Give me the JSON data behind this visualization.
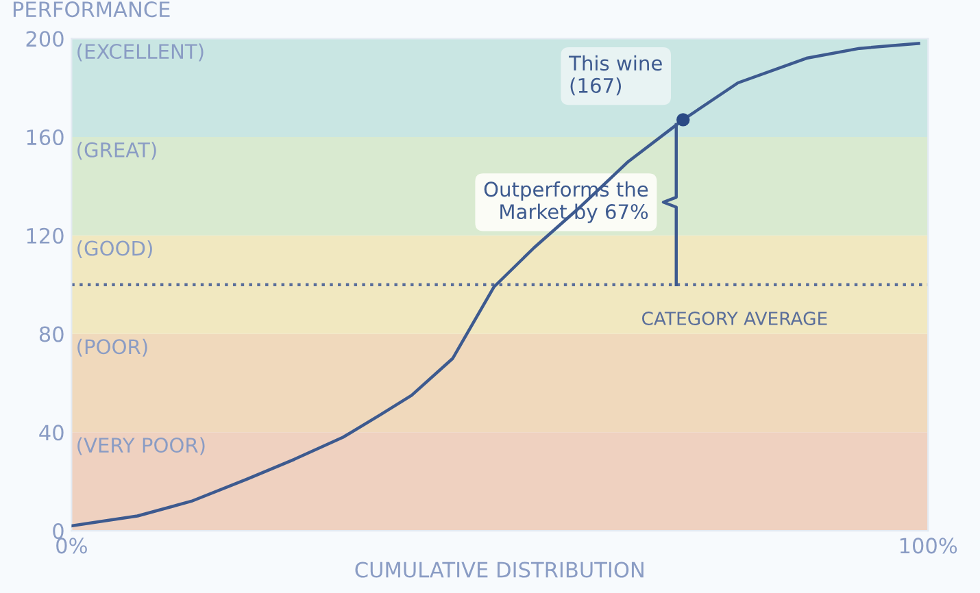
{
  "chart_data": {
    "type": "line",
    "xlabel": "CUMULATIVE DISTRIBUTION",
    "ylabel": "PERFORMANCE",
    "xlim": [
      0,
      100
    ],
    "ylim": [
      0,
      200
    ],
    "xticks": [
      {
        "value": 0,
        "label": "0%"
      },
      {
        "value": 100,
        "label": "100%"
      }
    ],
    "yticks": [
      0,
      40,
      80,
      120,
      160,
      200
    ],
    "grid": false,
    "marker": "none",
    "line_style": "solid",
    "series": [
      {
        "color": "#3d5a8f",
        "x": [
          0,
          7.7,
          14,
          20.5,
          26,
          31.7,
          36,
          39.7,
          44.5,
          49.3,
          54,
          59.2,
          65,
          71.4,
          77.8,
          85.8,
          92,
          98.9
        ],
        "values": [
          2,
          6,
          12,
          21,
          29,
          38,
          47,
          55,
          70,
          99,
          115,
          131,
          150,
          167,
          182,
          192,
          196,
          198
        ]
      },
      {
        "type": "scatter",
        "color": "#2b4a85",
        "marker": "circle",
        "x": [
          71.4
        ],
        "values": [
          167
        ]
      }
    ],
    "bands": [
      {
        "axis": "y",
        "from": 0,
        "to": 40,
        "label": "(VERY POOR)",
        "color": "#efd1c0"
      },
      {
        "axis": "y",
        "from": 40,
        "to": 80,
        "label": "(POOR)",
        "color": "#f0d9bc"
      },
      {
        "axis": "y",
        "from": 80,
        "to": 120,
        "label": "(GOOD)",
        "color": "#f1e8c0"
      },
      {
        "axis": "y",
        "from": 120,
        "to": 160,
        "label": "(GREAT)",
        "color": "#d9ead0"
      },
      {
        "axis": "y",
        "from": 160,
        "to": 200,
        "label": "(EXCELLENT)",
        "color": "#c9e6e3"
      }
    ],
    "ref_lines": [
      {
        "axis": "y",
        "value": 100,
        "label": "CATEGORY AVERAGE",
        "color": "#5a6e9a",
        "line_style": "dotted"
      }
    ],
    "annotations": [
      {
        "text": "This wine\n(167)",
        "x": 71.4,
        "y": 167
      },
      "Outperforms the\nMarket by 67%"
    ]
  }
}
